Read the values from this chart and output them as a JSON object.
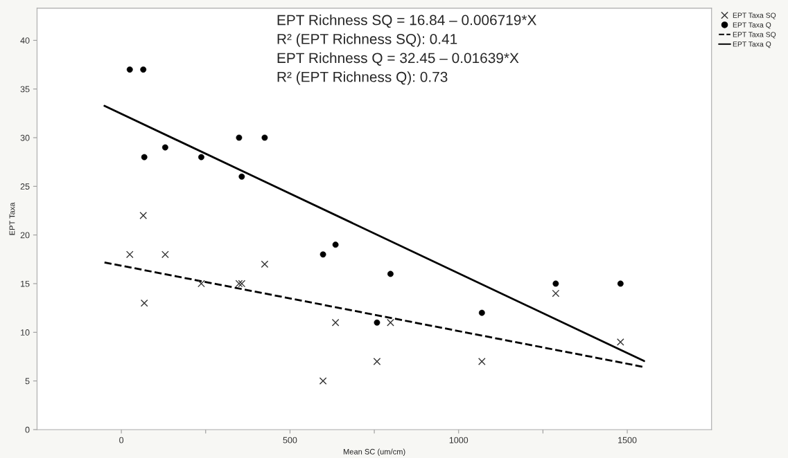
{
  "chart_data": {
    "type": "scatter",
    "xlabel": "Mean SC (um/cm)",
    "ylabel": "EPT Taxa",
    "xlim": [
      -250,
      1750
    ],
    "ylim": [
      0,
      43.3
    ],
    "xticks": [
      0,
      {
        "value": 250,
        "label": null
      },
      500,
      {
        "value": 750,
        "label": null
      },
      1000,
      {
        "value": 1250,
        "label": null
      },
      1500
    ],
    "yticks": [
      0,
      5,
      10,
      15,
      20,
      25,
      30,
      35,
      40
    ],
    "grid": false,
    "legend": "top right",
    "series": [
      {
        "name": "EPT Taxa SQ",
        "marker": "cross",
        "color": "#333333",
        "x": [
          25,
          130,
          68,
          65,
          237,
          349,
          357,
          425,
          635,
          598,
          758,
          798,
          1069,
          1288,
          1480
        ],
        "values": [
          18,
          18,
          13,
          22,
          15,
          15,
          15,
          17,
          11,
          5,
          7,
          11,
          7,
          14,
          9
        ]
      },
      {
        "name": "EPT Taxa Q",
        "marker": "circle",
        "color": "#000000",
        "x": [
          25,
          65,
          68,
          130,
          237,
          349,
          425,
          357,
          598,
          635,
          758,
          798,
          1069,
          1288,
          1480
        ],
        "values": [
          37,
          37,
          28,
          29,
          28,
          30,
          30,
          26,
          18,
          19,
          11,
          16,
          12,
          15,
          15
        ]
      },
      {
        "name": "EPT Taxa SQ",
        "type": "line",
        "line_style": "dashed",
        "color": "#000000",
        "x": [
          -50,
          1550
        ],
        "values": [
          17.18,
          6.43
        ]
      },
      {
        "name": "EPT Taxa Q",
        "type": "line",
        "line_style": "solid",
        "color": "#000000",
        "x": [
          -50,
          1550
        ],
        "values": [
          33.27,
          7.05
        ]
      }
    ],
    "annotations": [
      "EPT Richness SQ = 16.84 – 0.006719*X",
      "R² (EPT Richness SQ): 0.41",
      "EPT Richness Q = 32.45 – 0.01639*X",
      "R² (EPT Richness Q): 0.73"
    ]
  }
}
